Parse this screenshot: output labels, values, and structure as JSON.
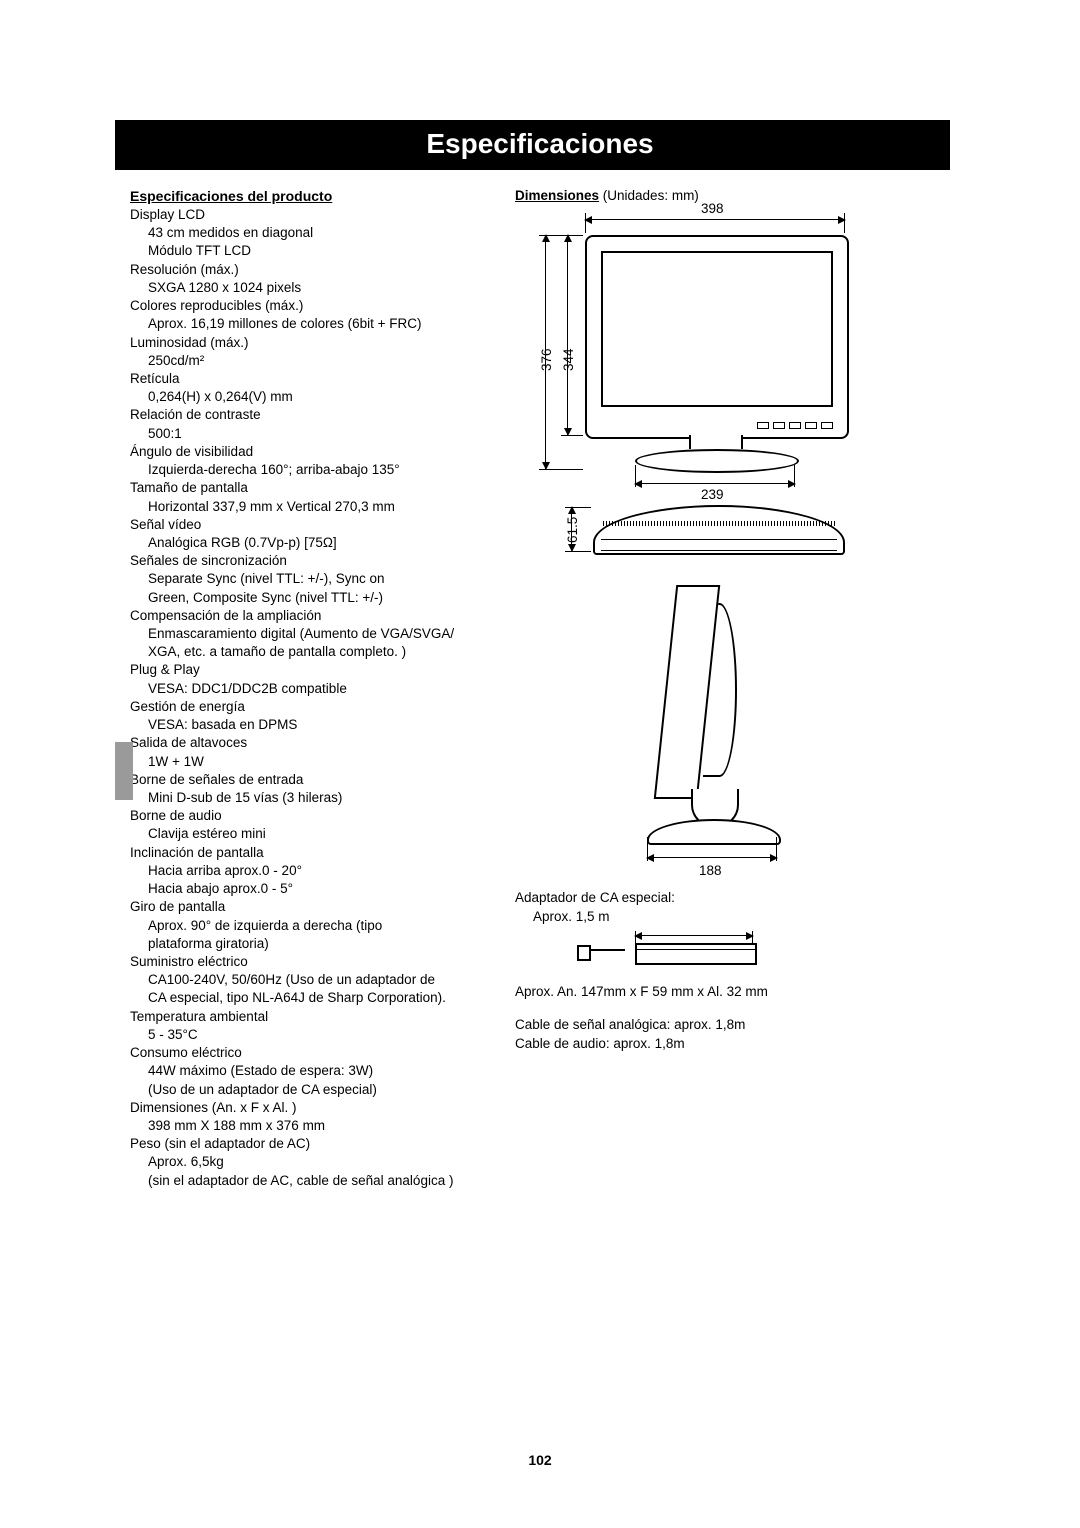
{
  "title": "Especificaciones",
  "left_heading": "Especificaciones del producto",
  "specs": [
    {
      "label": "Display LCD",
      "values": [
        "43 cm medidos en diagonal",
        "Módulo TFT LCD"
      ]
    },
    {
      "label": "Resolución (máx.)",
      "values": [
        "SXGA 1280 x 1024 pixels"
      ]
    },
    {
      "label": "Colores reproducibles (máx.)",
      "values": [
        "Aprox. 16,19 millones de colores (6bit + FRC)"
      ]
    },
    {
      "label": "Luminosidad (máx.)",
      "values": [
        "250cd/m²"
      ]
    },
    {
      "label": "Retícula",
      "values": [
        "0,264(H) x 0,264(V) mm"
      ]
    },
    {
      "label": "Relación de contraste",
      "values": [
        "500:1"
      ]
    },
    {
      "label": "Ángulo de visibilidad",
      "values": [
        "Izquierda-derecha 160°; arriba-abajo 135°"
      ]
    },
    {
      "label": "Tamaño de pantalla",
      "values": [
        "Horizontal 337,9 mm x Vertical 270,3 mm"
      ]
    },
    {
      "label": "Señal vídeo",
      "values": [
        "Analógica RGB (0.7Vp-p) [75Ω]"
      ]
    },
    {
      "label": "Señales de sincronización",
      "values": [
        "Separate Sync (nivel TTL: +/-), Sync on",
        "Green, Composite Sync (nivel TTL: +/-)"
      ]
    },
    {
      "label": "Compensación de la ampliación",
      "values": [
        "Enmascaramiento digital (Aumento de VGA/SVGA/",
        "XGA, etc. a tamaño de pantalla completo. )"
      ]
    },
    {
      "label": "Plug & Play",
      "values": [
        "VESA: DDC1/DDC2B compatible"
      ]
    },
    {
      "label": "Gestión de energía",
      "values": [
        "VESA: basada en DPMS"
      ]
    },
    {
      "label": "Salida de altavoces",
      "values": [
        "1W + 1W"
      ]
    },
    {
      "label": "Borne de señales de entrada",
      "values": [
        "Mini D-sub de 15 vías (3 hileras)"
      ]
    },
    {
      "label": "Borne de audio",
      "values": [
        "Clavija estéreo mini"
      ]
    },
    {
      "label": "Inclinación de pantalla",
      "values": [
        "Hacia arriba aprox.0 - 20°",
        "Hacia abajo aprox.0 - 5°"
      ]
    },
    {
      "label": "Giro de pantalla",
      "values": [
        "Aprox. 90° de izquierda a derecha (tipo",
        "plataforma giratoria)"
      ]
    },
    {
      "label": "Suministro eléctrico",
      "values": [
        "CA100-240V, 50/60Hz (Uso de un adaptador de",
        "CA especial, tipo NL-A64J de Sharp Corporation)."
      ]
    },
    {
      "label": "Temperatura ambiental",
      "values": [
        "5 - 35°C"
      ]
    },
    {
      "label": "Consumo eléctrico",
      "values": [
        "44W máximo (Estado de espera: 3W)",
        "(Uso de un adaptador de CA especial)"
      ]
    },
    {
      "label": "Dimensiones (An. x F x Al. )",
      "values": [
        "398 mm X 188 mm x 376 mm"
      ]
    },
    {
      "label": "Peso (sin el adaptador de AC)",
      "values": [
        "Aprox. 6,5kg",
        "(sin el adaptador de AC, cable de señal analógica )"
      ]
    }
  ],
  "right": {
    "heading_bold": "Dimensiones",
    "heading_rest": " (Unidades: mm)",
    "dim_398": "398",
    "dim_376": "376",
    "dim_344": "344",
    "dim_239": "239",
    "dim_61_5": "61.5",
    "dim_188": "188",
    "adapter_label": "Adaptador de CA especial:",
    "adapter_len": "Aprox. 1,5 m",
    "adapter_dims": "Aprox. An. 147mm x F 59 mm x Al. 32 mm",
    "cable_signal": "Cable de señal analógica: aprox. 1,8m",
    "cable_audio": "Cable de audio: aprox. 1,8m"
  },
  "page_number": "102"
}
